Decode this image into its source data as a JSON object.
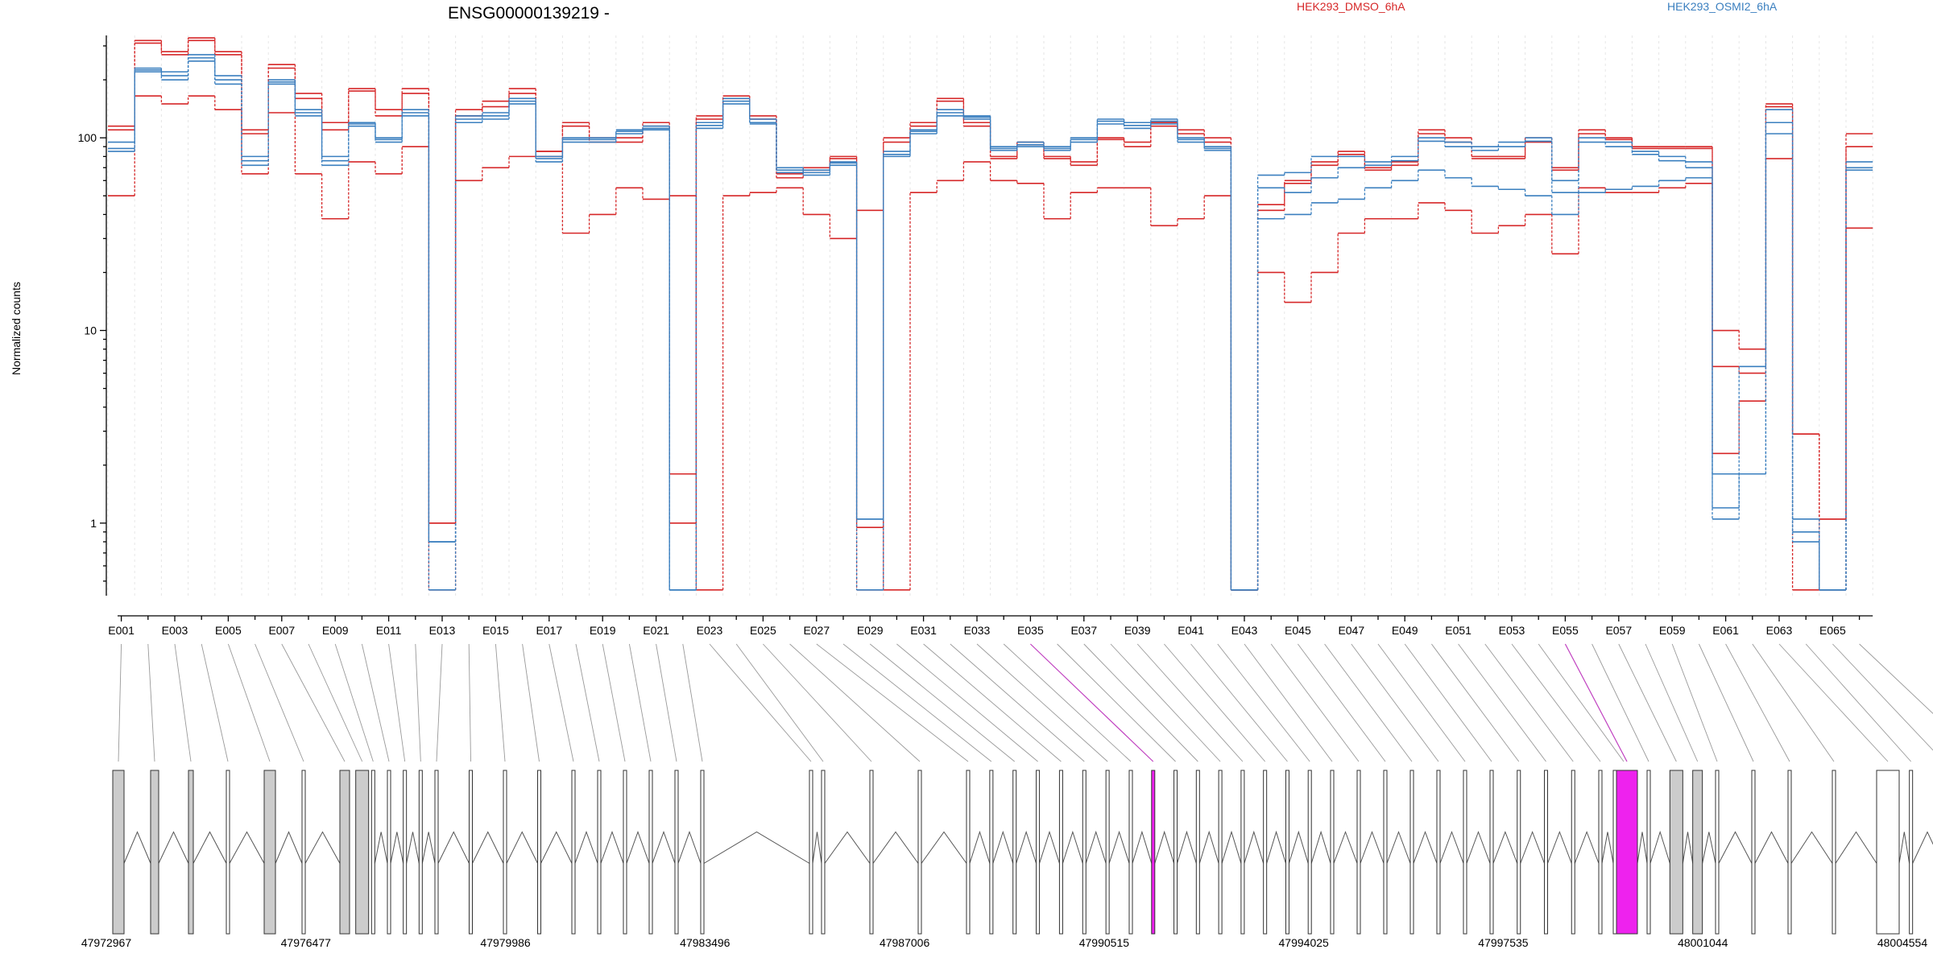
{
  "chart_data": {
    "type": "line",
    "title": "ENSG00000139219 -",
    "ylabel": "Normalized counts",
    "yscale": "log",
    "ylim": [
      0.42,
      340
    ],
    "y_ticks": [
      1,
      10,
      100
    ],
    "y_tick_labels": [
      "1",
      "10",
      "100"
    ],
    "grid": true,
    "legend_placement": "top-right",
    "colors": {
      "HEK293_DMSO_6hA": "#d62728",
      "HEK293_OSMI2_6hA": "#3a7fbf",
      "highlight": "#ee22ee",
      "gray_box": "#cccccc"
    },
    "x_labels": [
      "E001",
      "E003",
      "E005",
      "E007",
      "E009",
      "E011",
      "E013",
      "E015",
      "E017",
      "E019",
      "E021",
      "E023",
      "E025",
      "E027",
      "E029",
      "E031",
      "E033",
      "E035",
      "E037",
      "E039",
      "E041",
      "E043",
      "E045",
      "E047",
      "E049",
      "E051",
      "E053",
      "E055",
      "E057",
      "E059",
      "E061",
      "E063",
      "E065"
    ],
    "n_bins": 66,
    "series": [
      {
        "name": "HEK293_DMSO_6hA",
        "color": "#d62728",
        "values": [
          115,
          320,
          280,
          330,
          280,
          110,
          240,
          170,
          120,
          180,
          140,
          180,
          1.0,
          140,
          155,
          180,
          85,
          120,
          100,
          100,
          120,
          1.8,
          130,
          165,
          130,
          65,
          70,
          80,
          0.95,
          100,
          120,
          160,
          120,
          80,
          95,
          80,
          75,
          100,
          95,
          120,
          110,
          100,
          0.45,
          45,
          60,
          75,
          85,
          70,
          75,
          110,
          100,
          80,
          80,
          100,
          70,
          110,
          100,
          90,
          90,
          90,
          10,
          8,
          150,
          2.9,
          1.05,
          105
        ]
      },
      {
        "name": "HEK293_DMSO_6hA",
        "color": "#d62728",
        "values": [
          110,
          310,
          270,
          320,
          270,
          105,
          230,
          160,
          110,
          175,
          130,
          170,
          1.0,
          130,
          145,
          170,
          80,
          115,
          95,
          95,
          115,
          1.0,
          125,
          160,
          125,
          62,
          68,
          78,
          0.45,
          95,
          115,
          155,
          115,
          78,
          92,
          78,
          72,
          98,
          90,
          115,
          105,
          95,
          0.45,
          42,
          58,
          72,
          82,
          68,
          72,
          105,
          95,
          78,
          78,
          95,
          68,
          105,
          98,
          88,
          88,
          88,
          6.5,
          6,
          145,
          2.9,
          0.45,
          90
        ]
      },
      {
        "name": "HEK293_DMSO_6hA",
        "color": "#d62728",
        "values": [
          50,
          165,
          150,
          165,
          140,
          65,
          135,
          65,
          38,
          75,
          65,
          90,
          0.45,
          60,
          70,
          80,
          85,
          32,
          40,
          55,
          48,
          50,
          0.45,
          50,
          52,
          55,
          40,
          30,
          42,
          0.45,
          52,
          60,
          75,
          60,
          58,
          38,
          52,
          55,
          55,
          35,
          38,
          50,
          0.45,
          20,
          14,
          20,
          32,
          38,
          38,
          46,
          42,
          32,
          35,
          40,
          25,
          55,
          52,
          52,
          55,
          58,
          2.3,
          4.3,
          78,
          0.45,
          1.05,
          34
        ]
      },
      {
        "name": "HEK293_OSMI2_6hA",
        "color": "#3a7fbf",
        "values": [
          95,
          230,
          220,
          270,
          210,
          80,
          200,
          140,
          80,
          120,
          100,
          140,
          0.45,
          130,
          135,
          160,
          80,
          100,
          100,
          110,
          115,
          0.45,
          120,
          160,
          125,
          70,
          68,
          75,
          0.45,
          85,
          110,
          140,
          130,
          90,
          95,
          90,
          100,
          125,
          120,
          125,
          100,
          90,
          0.45,
          64,
          66,
          80,
          80,
          75,
          80,
          100,
          95,
          90,
          95,
          100,
          60,
          100,
          95,
          85,
          80,
          75,
          1.05,
          6.5,
          140,
          1.05,
          0.45,
          75
        ]
      },
      {
        "name": "HEK293_OSMI2_6hA",
        "color": "#3a7fbf",
        "values": [
          85,
          220,
          200,
          250,
          190,
          72,
          190,
          130,
          72,
          115,
          95,
          130,
          0.8,
          120,
          125,
          150,
          75,
          95,
          95,
          105,
          110,
          0.45,
          112,
          150,
          118,
          66,
          64,
          72,
          1.05,
          80,
          105,
          130,
          125,
          86,
          90,
          86,
          95,
          118,
          112,
          118,
          95,
          86,
          0.45,
          55,
          52,
          62,
          70,
          72,
          76,
          96,
          90,
          86,
          90,
          96,
          52,
          95,
          90,
          82,
          76,
          70,
          1.2,
          1.8,
          105,
          0.8,
          0.45,
          68
        ]
      },
      {
        "name": "HEK293_OSMI2_6hA",
        "color": "#3a7fbf",
        "values": [
          88,
          225,
          210,
          260,
          200,
          76,
          195,
          135,
          76,
          118,
          98,
          135,
          0.8,
          125,
          130,
          155,
          78,
          98,
          98,
          108,
          112,
          0.45,
          116,
          155,
          120,
          68,
          66,
          74,
          1.05,
          82,
          108,
          135,
          128,
          88,
          92,
          88,
          98,
          122,
          116,
          122,
          98,
          88,
          0.45,
          38,
          40,
          46,
          48,
          55,
          60,
          68,
          62,
          56,
          54,
          50,
          40,
          52,
          54,
          56,
          60,
          62,
          1.8,
          1.8,
          120,
          0.9,
          0.45,
          70
        ]
      }
    ],
    "genomic_axis_labels": [
      "47972967",
      "47976477",
      "47979986",
      "47983496",
      "47987006",
      "47990515",
      "47994025",
      "47997535",
      "48001044",
      "48004554"
    ],
    "highlighted_bins": [
      "E035",
      "E055"
    ]
  },
  "legend": [
    "HEK293_DMSO_6hA",
    "HEK293_OSMI2_6hA"
  ]
}
